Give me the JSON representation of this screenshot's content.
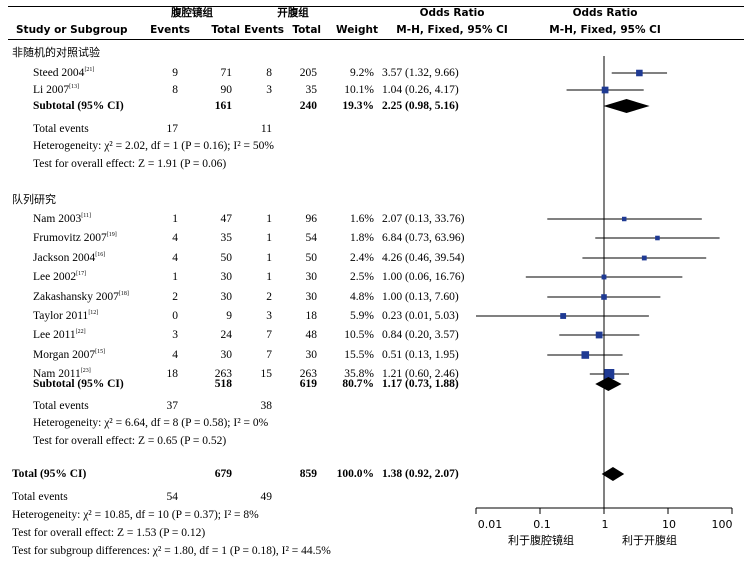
{
  "header": {
    "group1": "腹腔镜组",
    "group2": "开腹组",
    "study_col": "Study or Subgroup",
    "events": "Events",
    "total": "Total",
    "weight": "Weight",
    "or_title": "Odds Ratio",
    "or_sub": "M-H, Fixed, 95% CI",
    "plot_title": "Odds Ratio",
    "plot_sub": "M-H, Fixed, 95% CI"
  },
  "subgroups": [
    {
      "title": "非随机的对照试验",
      "studies": [
        {
          "name": "Steed 2004",
          "ref": "[21]",
          "e1": "9",
          "t1": "71",
          "e2": "8",
          "t2": "205",
          "weight": "9.2%",
          "ci": "3.57 (1.32, 9.66)"
        },
        {
          "name": "Li 2007",
          "ref": "[13]",
          "e1": "8",
          "t1": "90",
          "e2": "3",
          "t2": "35",
          "weight": "10.1%",
          "ci": "1.04 (0.26, 4.17)"
        }
      ],
      "subtotal": {
        "label": "Subtotal (95% CI)",
        "t1": "161",
        "t2": "240",
        "weight": "19.3%",
        "ci": "2.25 (0.98, 5.16)"
      },
      "total_events": {
        "label": "Total events",
        "e1": "17",
        "e2": "11"
      },
      "heterogeneity": "Heterogeneity: χ² = 2.02, df = 1 (P = 0.16); I² = 50%",
      "overall": "Test for overall effect: Z = 1.91 (P = 0.06)"
    },
    {
      "title": "队列研究",
      "studies": [
        {
          "name": "Nam 2003",
          "ref": "[11]",
          "e1": "1",
          "t1": "47",
          "e2": "1",
          "t2": "96",
          "weight": "1.6%",
          "ci": "2.07 (0.13, 33.76)"
        },
        {
          "name": "Frumovitz 2007",
          "ref": "[19]",
          "e1": "4",
          "t1": "35",
          "e2": "1",
          "t2": "54",
          "weight": "1.8%",
          "ci": "6.84 (0.73, 63.96)"
        },
        {
          "name": "Jackson 2004",
          "ref": "[16]",
          "e1": "4",
          "t1": "50",
          "e2": "1",
          "t2": "50",
          "weight": "2.4%",
          "ci": "4.26 (0.46, 39.54)"
        },
        {
          "name": "Lee 2002",
          "ref": "[17]",
          "e1": "1",
          "t1": "30",
          "e2": "1",
          "t2": "30",
          "weight": "2.5%",
          "ci": "1.00 (0.06, 16.76)"
        },
        {
          "name": "Zakashansky 2007",
          "ref": "[18]",
          "e1": "2",
          "t1": "30",
          "e2": "2",
          "t2": "30",
          "weight": "4.8%",
          "ci": "1.00 (0.13, 7.60)"
        },
        {
          "name": "Taylor 2011",
          "ref": "[12]",
          "e1": "0",
          "t1": "9",
          "e2": "3",
          "t2": "18",
          "weight": "5.9%",
          "ci": "0.23 (0.01, 5.03)"
        },
        {
          "name": "Lee 2011",
          "ref": "[22]",
          "e1": "3",
          "t1": "24",
          "e2": "7",
          "t2": "48",
          "weight": "10.5%",
          "ci": "0.84 (0.20, 3.57)"
        },
        {
          "name": "Morgan 2007",
          "ref": "[15]",
          "e1": "4",
          "t1": "30",
          "e2": "7",
          "t2": "30",
          "weight": "15.5%",
          "ci": "0.51 (0.13, 1.95)"
        },
        {
          "name": "Nam 2011",
          "ref": "[23]",
          "e1": "18",
          "t1": "263",
          "e2": "15",
          "t2": "263",
          "weight": "35.8%",
          "ci": "1.21 (0.60, 2.46)"
        }
      ],
      "subtotal": {
        "label": "Subtotal (95% CI)",
        "t1": "518",
        "t2": "619",
        "weight": "80.7%",
        "ci": "1.17 (0.73, 1.88)"
      },
      "total_events": {
        "label": "Total events",
        "e1": "37",
        "e2": "38"
      },
      "heterogeneity": "Heterogeneity: χ² = 6.64, df = 8 (P = 0.58); I² = 0%",
      "overall": "Test for overall effect: Z = 0.65 (P = 0.52)"
    }
  ],
  "total": {
    "label": "Total (95% CI)",
    "t1": "679",
    "t2": "859",
    "weight": "100.0%",
    "ci": "1.38 (0.92, 2.07)"
  },
  "total_events": {
    "label": "Total events",
    "e1": "54",
    "e2": "49"
  },
  "footer": {
    "heterogeneity": "Heterogeneity: χ² = 10.85, df = 10 (P = 0.37); I² = 8%",
    "overall": "Test for overall effect: Z = 1.53 (P = 0.12)",
    "subgroup_diff": "Test for subgroup differences: χ² = 1.80, df = 1 (P = 0.18), I² = 44.5%"
  },
  "axis": {
    "ticks": [
      "0.01",
      "0.1",
      "1",
      "10",
      "100"
    ],
    "favours_left": "利于腹腔镜组",
    "favours_right": "利于开腹组"
  },
  "colors": {
    "marker": "#1f3a93",
    "diamond": "#000000"
  },
  "chart_data": {
    "type": "forest",
    "xscale": "log",
    "xlim": [
      0.01,
      100
    ],
    "null_line": 1,
    "studies": [
      {
        "name": "Steed 2004",
        "or": 3.57,
        "lo": 1.32,
        "hi": 9.66,
        "weight": 9.2
      },
      {
        "name": "Li 2007",
        "or": 1.04,
        "lo": 0.26,
        "hi": 4.17,
        "weight": 10.1
      },
      {
        "name": "Nam 2003",
        "or": 2.07,
        "lo": 0.13,
        "hi": 33.76,
        "weight": 1.6
      },
      {
        "name": "Frumovitz 2007",
        "or": 6.84,
        "lo": 0.73,
        "hi": 63.96,
        "weight": 1.8
      },
      {
        "name": "Jackson 2004",
        "or": 4.26,
        "lo": 0.46,
        "hi": 39.54,
        "weight": 2.4
      },
      {
        "name": "Lee 2002",
        "or": 1.0,
        "lo": 0.06,
        "hi": 16.76,
        "weight": 2.5
      },
      {
        "name": "Zakashansky 2007",
        "or": 1.0,
        "lo": 0.13,
        "hi": 7.6,
        "weight": 4.8
      },
      {
        "name": "Taylor 2011",
        "or": 0.23,
        "lo": 0.01,
        "hi": 5.03,
        "weight": 5.9
      },
      {
        "name": "Lee 2011",
        "or": 0.84,
        "lo": 0.2,
        "hi": 3.57,
        "weight": 10.5
      },
      {
        "name": "Morgan 2007",
        "or": 0.51,
        "lo": 0.13,
        "hi": 1.95,
        "weight": 15.5
      },
      {
        "name": "Nam 2011",
        "or": 1.21,
        "lo": 0.6,
        "hi": 2.46,
        "weight": 35.8
      }
    ],
    "pooled": [
      {
        "name": "Subtotal 非随机的对照试验",
        "or": 2.25,
        "lo": 0.98,
        "hi": 5.16
      },
      {
        "name": "Subtotal 队列研究",
        "or": 1.17,
        "lo": 0.73,
        "hi": 1.88
      },
      {
        "name": "Total",
        "or": 1.38,
        "lo": 0.92,
        "hi": 2.07
      }
    ]
  }
}
